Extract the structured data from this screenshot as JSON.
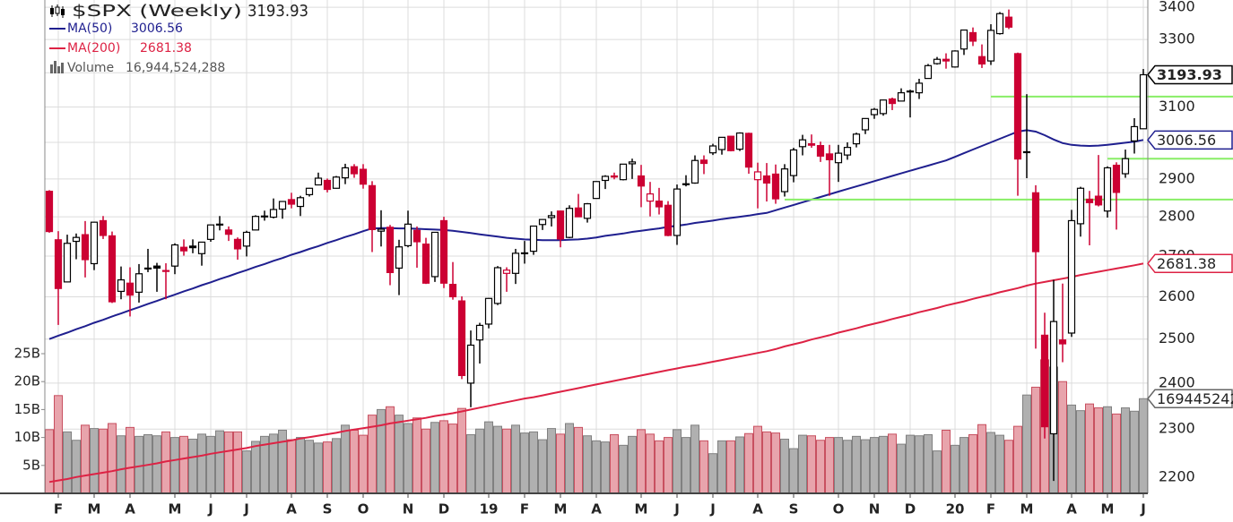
{
  "chart_data": {
    "type": "candlestick",
    "title": "$SPX (Weekly)",
    "log_scale": true,
    "grid": true,
    "up_color": "#000000",
    "down_color": "#cc0033",
    "ylim": [
      2167,
      3423
    ],
    "yticks": [
      2200,
      2300,
      2400,
      2500,
      2600,
      2700,
      2800,
      2900,
      3000,
      3100,
      3200,
      3300,
      3400
    ],
    "y2lim": [
      0,
      88300000000
    ],
    "y2ticks": [
      {
        "value": 5000000000,
        "label": "5B"
      },
      {
        "value": 10000000000,
        "label": "10B"
      },
      {
        "value": 15000000000,
        "label": "15B"
      },
      {
        "value": 20000000000,
        "label": "20B"
      },
      {
        "value": 25000000000,
        "label": "25B"
      }
    ],
    "categories": [
      null,
      "F",
      null,
      null,
      null,
      "M",
      null,
      null,
      null,
      "A",
      null,
      null,
      null,
      null,
      "M",
      null,
      null,
      null,
      "J",
      null,
      null,
      null,
      "J",
      null,
      null,
      null,
      null,
      "A",
      null,
      null,
      null,
      "S",
      null,
      null,
      null,
      "O",
      null,
      null,
      null,
      null,
      "N",
      null,
      null,
      null,
      "D",
      null,
      null,
      null,
      null,
      "19",
      null,
      null,
      null,
      "F",
      null,
      null,
      null,
      "M",
      null,
      null,
      null,
      "A",
      null,
      null,
      null,
      null,
      "M",
      null,
      null,
      null,
      "J",
      null,
      null,
      null,
      "J",
      null,
      null,
      null,
      null,
      "A",
      null,
      null,
      null,
      "S",
      null,
      null,
      null,
      null,
      "O",
      null,
      null,
      null,
      "N",
      null,
      null,
      null,
      "D",
      null,
      null,
      null,
      null,
      "20",
      null,
      null,
      null,
      "F",
      null,
      null,
      null,
      "M",
      null,
      null,
      null,
      null,
      "A",
      null,
      null,
      null,
      "M",
      null,
      null,
      null,
      "J"
    ],
    "open": [
      2867,
      2741,
      2636,
      2737,
      2754,
      2681,
      2790,
      2751,
      2613,
      2633,
      2611,
      2670,
      2675,
      2664,
      2675,
      2722,
      2725,
      2706,
      2742,
      2781,
      2766,
      2742,
      2725,
      2766,
      2800,
      2799,
      2820,
      2845,
      2827,
      2858,
      2884,
      2896,
      2875,
      2903,
      2933,
      2926,
      2882,
      2763,
      2773,
      2670,
      2726,
      2765,
      2730,
      2649,
      2790,
      2630,
      2590,
      2400,
      2498,
      2535,
      2584,
      2657,
      2657,
      2706,
      2712,
      2780,
      2798,
      2815,
      2747,
      2823,
      2796,
      2848,
      2896,
      2908,
      2898,
      2941,
      2908,
      2841,
      2841,
      2830,
      2752,
      2885,
      2889,
      2951,
      2971,
      2980,
      3017,
      2981,
      3025,
      2898,
      2908,
      2913,
      2866,
      2909,
      2988,
      2996,
      2991,
      2968,
      2944,
      2965,
      2996,
      3035,
      3078,
      3081,
      3123,
      3117,
      3144,
      3141,
      3183,
      3227,
      3240,
      3217,
      3271,
      3321,
      3248,
      3235,
      3318,
      3369,
      3257,
      2974,
      2863,
      2509,
      2290,
      2498,
      2514,
      2782,
      2846,
      2854,
      2815,
      2937,
      2914,
      3004,
      3038
    ],
    "high": [
      2870,
      2763,
      2754,
      2757,
      2789,
      2787,
      2802,
      2762,
      2674,
      2672,
      2680,
      2718,
      2683,
      2682,
      2732,
      2742,
      2742,
      2736,
      2779,
      2802,
      2775,
      2747,
      2764,
      2804,
      2816,
      2848,
      2841,
      2863,
      2855,
      2876,
      2917,
      2901,
      2908,
      2941,
      2940,
      2940,
      2894,
      2817,
      2779,
      2741,
      2816,
      2775,
      2746,
      2760,
      2800,
      2685,
      2601,
      2520,
      2538,
      2597,
      2675,
      2672,
      2718,
      2738,
      2776,
      2794,
      2814,
      2816,
      2830,
      2860,
      2836,
      2894,
      2910,
      2917,
      2940,
      2955,
      2938,
      2892,
      2876,
      2841,
      2885,
      2910,
      2964,
      2964,
      2996,
      3014,
      3018,
      3028,
      3027,
      2944,
      2943,
      2939,
      2940,
      2985,
      3021,
      3022,
      3002,
      2993,
      2993,
      3000,
      3027,
      3067,
      3097,
      3121,
      3127,
      3154,
      3150,
      3182,
      3226,
      3247,
      3258,
      3267,
      3329,
      3337,
      3285,
      3347,
      3385,
      3393,
      3260,
      3137,
      2883,
      2562,
      2641,
      2632,
      2818,
      2879,
      2868,
      2965,
      2934,
      2945,
      2980,
      3068,
      3211
    ],
    "low": [
      2759,
      2533,
      2635,
      2692,
      2647,
      2665,
      2743,
      2585,
      2594,
      2553,
      2586,
      2660,
      2612,
      2594,
      2655,
      2701,
      2707,
      2676,
      2736,
      2765,
      2738,
      2691,
      2699,
      2766,
      2790,
      2796,
      2795,
      2822,
      2802,
      2853,
      2884,
      2864,
      2874,
      2886,
      2903,
      2874,
      2710,
      2724,
      2628,
      2604,
      2722,
      2671,
      2631,
      2636,
      2621,
      2593,
      2409,
      2347,
      2444,
      2525,
      2580,
      2612,
      2631,
      2681,
      2703,
      2766,
      2775,
      2722,
      2745,
      2800,
      2785,
      2848,
      2873,
      2899,
      2896,
      2900,
      2825,
      2801,
      2806,
      2750,
      2728,
      2880,
      2887,
      2913,
      2965,
      2966,
      2975,
      2976,
      2914,
      2822,
      2840,
      2834,
      2853,
      2891,
      2964,
      2985,
      2946,
      2855,
      2892,
      2952,
      2986,
      3023,
      3066,
      3075,
      3091,
      3117,
      3070,
      3123,
      3183,
      3224,
      3212,
      3215,
      3253,
      3280,
      3214,
      3223,
      3315,
      3332,
      2855,
      2902,
      2478,
      2280,
      2192,
      2447,
      2505,
      2749,
      2727,
      2827,
      2798,
      2767,
      2903,
      2969,
      3038
    ],
    "close": [
      2762,
      2620,
      2732,
      2747,
      2691,
      2786,
      2752,
      2588,
      2641,
      2604,
      2656,
      2670,
      2670,
      2663,
      2728,
      2713,
      2721,
      2735,
      2779,
      2780,
      2755,
      2718,
      2760,
      2801,
      2802,
      2819,
      2840,
      2833,
      2850,
      2875,
      2902,
      2872,
      2905,
      2930,
      2914,
      2886,
      2767,
      2768,
      2659,
      2723,
      2781,
      2736,
      2633,
      2760,
      2633,
      2600,
      2417,
      2486,
      2532,
      2596,
      2671,
      2665,
      2707,
      2708,
      2776,
      2793,
      2803,
      2743,
      2822,
      2800,
      2834,
      2893,
      2907,
      2905,
      2940,
      2946,
      2881,
      2860,
      2826,
      2752,
      2873,
      2887,
      2950,
      2942,
      2990,
      3014,
      2977,
      3026,
      2932,
      2919,
      2889,
      2847,
      2927,
      2979,
      3007,
      2992,
      2962,
      2952,
      2970,
      2986,
      3023,
      3067,
      3093,
      3120,
      3110,
      3141,
      3146,
      3169,
      3221,
      3240,
      3235,
      3265,
      3329,
      3295,
      3226,
      3328,
      3380,
      3338,
      2954,
      2972,
      2711,
      2305,
      2541,
      2489,
      2790,
      2875,
      2837,
      2831,
      2930,
      2864,
      2955,
      3044,
      3193.93
    ],
    "series": [
      {
        "name": "MA(50)",
        "color": "#1f1f8f",
        "values": [
          2500,
          2508,
          2515,
          2523,
          2530,
          2538,
          2545,
          2553,
          2560,
          2568,
          2575,
          2583,
          2590,
          2598,
          2605,
          2613,
          2620,
          2628,
          2635,
          2643,
          2650,
          2658,
          2665,
          2673,
          2680,
          2688,
          2695,
          2703,
          2710,
          2718,
          2725,
          2733,
          2740,
          2748,
          2755,
          2763,
          2770,
          2771,
          2771,
          2770,
          2770,
          2769,
          2768,
          2767,
          2766,
          2764,
          2761,
          2758,
          2755,
          2752,
          2749,
          2746,
          2744,
          2742,
          2741,
          2740,
          2740,
          2740,
          2741,
          2742,
          2744,
          2747,
          2751,
          2754,
          2757,
          2761,
          2764,
          2767,
          2770,
          2774,
          2777,
          2780,
          2784,
          2787,
          2790,
          2794,
          2797,
          2800,
          2803,
          2807,
          2810,
          2817,
          2824,
          2831,
          2838,
          2845,
          2852,
          2859,
          2866,
          2873,
          2880,
          2887,
          2894,
          2901,
          2908,
          2915,
          2922,
          2929,
          2936,
          2943,
          2950,
          2960,
          2970,
          2980,
          2990,
          3000,
          3010,
          3020,
          3030,
          3034,
          3030,
          3020,
          3008,
          2998,
          2993,
          2991,
          2990,
          2991,
          2993,
          2996,
          2999,
          3002,
          3006.56
        ]
      },
      {
        "name": "MA(200)",
        "color": "#dd2244",
        "values": [
          2190,
          2193,
          2196,
          2200,
          2203,
          2206,
          2209,
          2212,
          2216,
          2219,
          2222,
          2225,
          2228,
          2232,
          2235,
          2238,
          2241,
          2244,
          2248,
          2251,
          2254,
          2257,
          2260,
          2264,
          2267,
          2270,
          2273,
          2276,
          2280,
          2283,
          2286,
          2289,
          2292,
          2296,
          2299,
          2302,
          2305,
          2308,
          2312,
          2315,
          2318,
          2321,
          2324,
          2328,
          2331,
          2334,
          2338,
          2342,
          2346,
          2350,
          2354,
          2358,
          2362,
          2366,
          2369,
          2373,
          2377,
          2381,
          2385,
          2389,
          2393,
          2397,
          2401,
          2405,
          2409,
          2413,
          2417,
          2421,
          2425,
          2429,
          2433,
          2437,
          2440,
          2444,
          2448,
          2452,
          2456,
          2460,
          2464,
          2468,
          2472,
          2477,
          2483,
          2488,
          2493,
          2499,
          2504,
          2509,
          2515,
          2520,
          2525,
          2531,
          2536,
          2541,
          2547,
          2552,
          2557,
          2563,
          2568,
          2573,
          2579,
          2584,
          2589,
          2595,
          2600,
          2605,
          2611,
          2616,
          2621,
          2627,
          2632,
          2636,
          2640,
          2644,
          2648,
          2653,
          2657,
          2661,
          2665,
          2669,
          2673,
          2677,
          2681.38
        ]
      }
    ],
    "volume": {
      "name": "Volume",
      "last_label": "16,944,524,288",
      "values": [
        11400000000.0,
        17500000000.0,
        11000000000.0,
        9500000000.0,
        12200000000.0,
        11600000000.0,
        11500000000.0,
        12500000000.0,
        10300000000.0,
        11800000000.0,
        10200000000.0,
        10500000000.0,
        10300000000.0,
        11000000000.0,
        10000000000.0,
        10200000000.0,
        9700000000.0,
        10600000000.0,
        10200000000.0,
        11200000000.0,
        11000000000.0,
        11000000000.0,
        7600000000.0,
        9300000000.0,
        10200000000.0,
        10600000000.0,
        11300000000.0,
        9600000000.0,
        10000000000.0,
        9500000000.0,
        9000000000.0,
        9200000000.0,
        9800000000.0,
        12200000000.0,
        11300000000.0,
        10400000000.0,
        14000000000.0,
        15000000000.0,
        15500000000.0,
        14000000000.0,
        12500000000.0,
        13500000000.0,
        11500000000.0,
        12700000000.0,
        13000000000.0,
        12400000000.0,
        15200000000.0,
        10500000000.0,
        11500000000.0,
        12800000000.0,
        12000000000.0,
        11500000000.0,
        12200000000.0,
        10800000000.0,
        11000000000.0,
        9600000000.0,
        11600000000.0,
        10600000000.0,
        12500000000.0,
        11800000000.0,
        10300000000.0,
        9400000000.0,
        9200000000.0,
        10500000000.0,
        8600000000.0,
        10200000000.0,
        11400000000.0,
        10600000000.0,
        9400000000.0,
        10000000000.0,
        11400000000.0,
        10000000000.0,
        12200000000.0,
        9400000000.0,
        7100000000.0,
        9400000000.0,
        9400000000.0,
        10100000000.0,
        10700000000.0,
        12000000000.0,
        11000000000.0,
        10800000000.0,
        9700000000.0,
        8000000000.0,
        10400000000.0,
        10300000000.0,
        9500000000.0,
        10000000000.0,
        10000000000.0,
        9500000000.0,
        10200000000.0,
        9600000000.0,
        10000000000.0,
        10200000000.0,
        10600000000.0,
        8800000000.0,
        10400000000.0,
        10300000000.0,
        10500000000.0,
        7600000000.0,
        11300000000.0,
        8600000000.0,
        10000000000.0,
        10500000000.0,
        12300000000.0,
        10900000000.0,
        10400000000.0,
        9500000000.0,
        12000000000.0,
        17600000000.0,
        19000000000.0,
        23900000000.0,
        22600000000.0,
        20000000000.0,
        15800000000.0,
        14800000000.0,
        16000000000.0,
        15300000000.0,
        15500000000.0,
        14200000000.0,
        15300000000.0,
        14700000000.0,
        16944524288
      ]
    },
    "hlines": [
      {
        "value": 3130,
        "from": 105
      },
      {
        "value": 2955,
        "from": 118
      },
      {
        "value": 2845,
        "from": 82
      }
    ],
    "hline_color": "#88ee66"
  }
}
